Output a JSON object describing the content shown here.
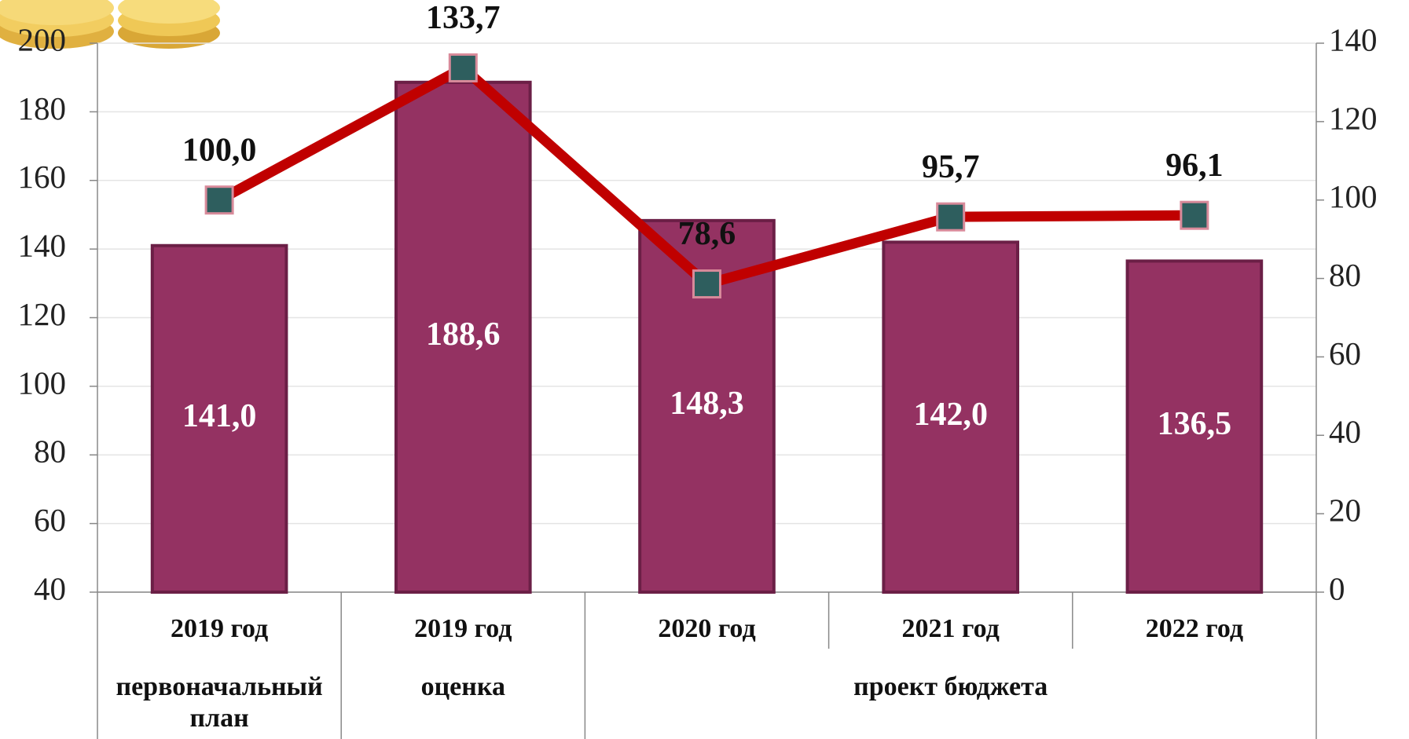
{
  "chart_data": {
    "type": "bar-line",
    "categories": [
      "2019 год",
      "2019 год",
      "2020 год",
      "2021 год",
      "2022 год"
    ],
    "category_groups": [
      "первоначальный план",
      "оценка",
      "проект бюджета"
    ],
    "series": [
      {
        "type": "bar",
        "color": "#943262",
        "values": [
          141.0,
          188.6,
          148.3,
          142.0,
          136.5
        ],
        "value_labels": [
          "141,0",
          "188,6",
          "148,3",
          "142,0",
          "136,5"
        ]
      },
      {
        "type": "line",
        "axis": "y2",
        "color": "#c00000",
        "marker_color": "#2e5e5e",
        "values": [
          100.0,
          133.7,
          78.6,
          95.7,
          96.1
        ],
        "value_labels": [
          "100,0",
          "133,7",
          "78,6",
          "95,7",
          "96,1"
        ]
      }
    ],
    "ylim": [
      40,
      200
    ],
    "yticks": [
      40,
      60,
      80,
      100,
      120,
      140,
      160,
      180,
      200
    ],
    "y2lim": [
      0,
      140
    ],
    "y2ticks": [
      0,
      20,
      40,
      60,
      80,
      100,
      120,
      140
    ],
    "grid": true
  }
}
